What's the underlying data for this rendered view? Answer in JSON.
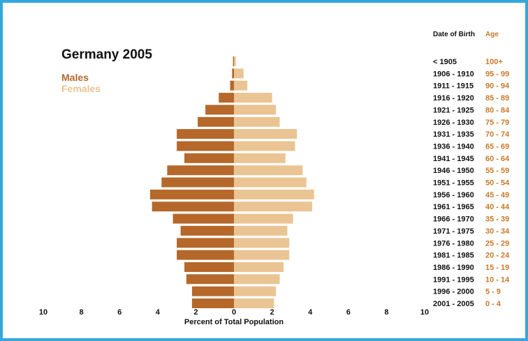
{
  "chart_data": {
    "type": "bar",
    "subtype": "population-pyramid",
    "title": "Germany 2005",
    "xlabel": "Percent of Total Population",
    "xlim": [
      -10,
      10
    ],
    "x_ticks": [
      10,
      8,
      6,
      4,
      2,
      0,
      2,
      4,
      6,
      8,
      10
    ],
    "grid": false,
    "colors": {
      "Males": "#b5682a",
      "Females": "#eac493",
      "frame": "#35a7dc"
    },
    "column_headers": {
      "birth": "Date of Birth",
      "age": "Age"
    },
    "birth_labels": [
      "< 1905",
      "1906 - 1910",
      "1911 - 1915",
      "1916 - 1920",
      "1921 - 1925",
      "1926 - 1930",
      "1931 - 1935",
      "1936 - 1940",
      "1941 - 1945",
      "1946 - 1950",
      "1951 - 1955",
      "1956 - 1960",
      "1961 - 1965",
      "1966 - 1970",
      "1971 - 1975",
      "1976 - 1980",
      "1981 - 1985",
      "1986 - 1990",
      "1991 - 1995",
      "1996 - 2000",
      "2001 - 2005"
    ],
    "categories": [
      "100+",
      "95 - 99",
      "90 - 94",
      "85 - 89",
      "80 - 84",
      "75 - 79",
      "70 - 74",
      "65 - 69",
      "60 - 64",
      "55 - 59",
      "50 - 54",
      "45 - 49",
      "40 - 44",
      "35 - 39",
      "30 - 34",
      "25 - 29",
      "20 - 24",
      "15 - 19",
      "10 - 14",
      "5 - 9",
      "0 - 4"
    ],
    "series": [
      {
        "name": "Males",
        "values": [
          0.05,
          0.1,
          0.2,
          0.8,
          1.5,
          1.9,
          3.0,
          3.0,
          2.6,
          3.5,
          3.8,
          4.4,
          4.3,
          3.2,
          2.8,
          3.0,
          3.0,
          2.6,
          2.5,
          2.2,
          2.2
        ]
      },
      {
        "name": "Females",
        "values": [
          0.1,
          0.5,
          0.7,
          2.0,
          2.2,
          2.4,
          3.3,
          3.2,
          2.7,
          3.6,
          3.8,
          4.2,
          4.1,
          3.1,
          2.8,
          2.9,
          2.9,
          2.6,
          2.4,
          2.2,
          2.1
        ]
      }
    ]
  }
}
